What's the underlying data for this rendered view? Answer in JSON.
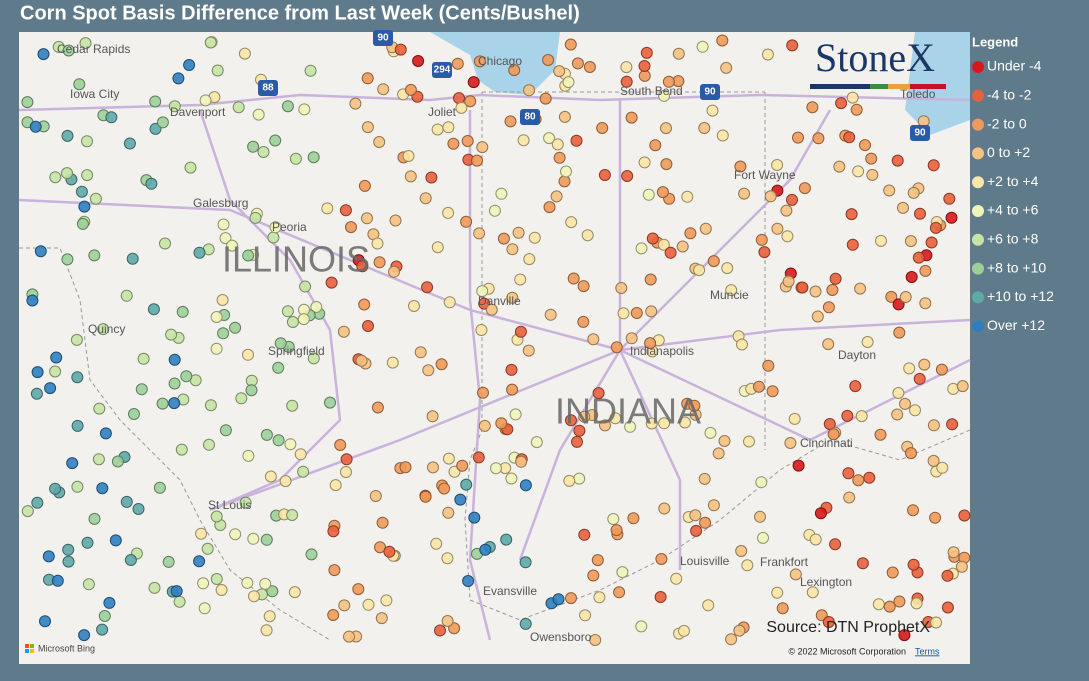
{
  "header": {
    "title": "Corn Spot Basis Difference from Last Week (Cents/Bushel)"
  },
  "legend": {
    "title": "Legend",
    "items": [
      {
        "label": "Under -4",
        "color": "#d7191c"
      },
      {
        "label": "-4 to -2",
        "color": "#e8603c"
      },
      {
        "label": "-2 to 0",
        "color": "#f09a5a"
      },
      {
        "label": "0 to +2",
        "color": "#f6c282"
      },
      {
        "label": "+2 to +4",
        "color": "#fbe6a6"
      },
      {
        "label": "+4 to +6",
        "color": "#f1f4b8"
      },
      {
        "label": "+6 to +8",
        "color": "#c7e4a5"
      },
      {
        "label": "+8 to +10",
        "color": "#9ccf98"
      },
      {
        "label": "+10 to +12",
        "color": "#5fa9a7"
      },
      {
        "label": "Over +12",
        "color": "#2f7fc0"
      }
    ]
  },
  "map": {
    "brand": "StoneX",
    "labels": [
      "Cedar Rapids",
      "Iowa City",
      "Davenport",
      "Chicago",
      "Joliet",
      "South Bend",
      "Toledo",
      "Galesburg",
      "Peoria",
      "ILLINOIS",
      "Danville",
      "Fort Wayne",
      "Muncie",
      "Quincy",
      "Springfield",
      "Indianapolis",
      "Dayton",
      "INDIANA",
      "Cincinnati",
      "St Louis",
      "Louisville",
      "Frankfort",
      "Lexington",
      "Evansville",
      "Owensboro"
    ],
    "highways": [
      "90",
      "294",
      "88",
      "80",
      "90",
      "90"
    ],
    "source": "Source: DTN ProphetX",
    "copyright": "© 2022 Microsoft Corporation",
    "terms": "Terms",
    "provider": "Microsoft Bing"
  }
}
